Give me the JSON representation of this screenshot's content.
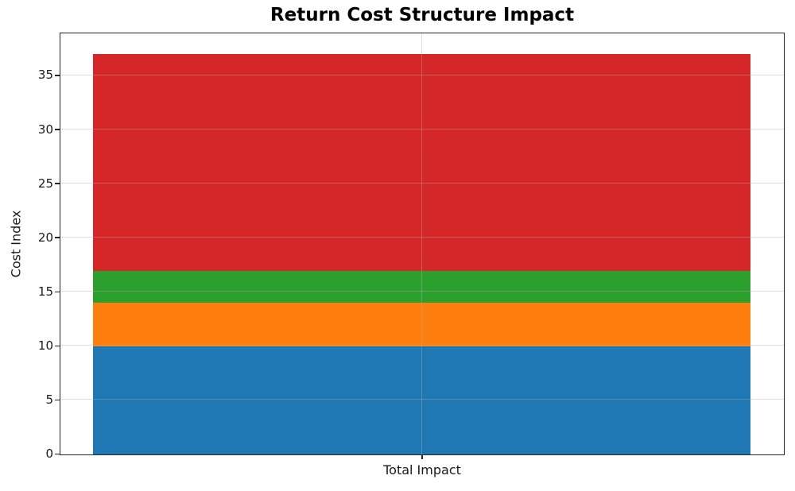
{
  "figure": {
    "background": "#ffffff",
    "spine_color": "#262626",
    "grid_color": "#b0b0b0",
    "grid_alpha": 0.4
  },
  "chart_data": {
    "type": "bar",
    "stacked": true,
    "title": "Return Cost Structure Impact",
    "categories": [
      "Total Impact"
    ],
    "series": [
      {
        "name": "blue-segment",
        "color": "#1f77b4",
        "values": [
          10
        ]
      },
      {
        "name": "orange-segment",
        "color": "#ff7f0e",
        "values": [
          4
        ]
      },
      {
        "name": "green-segment",
        "color": "#2ca02c",
        "values": [
          3
        ]
      },
      {
        "name": "red-segment",
        "color": "#d62728",
        "values": [
          20
        ]
      }
    ],
    "xlabel": "",
    "ylabel": "Cost Index",
    "ylim": [
      0,
      38.85
    ],
    "yticks": [
      0,
      5,
      10,
      15,
      20,
      25,
      30,
      35
    ],
    "grid": true,
    "legend": false,
    "bar_width_fraction": 0.909
  }
}
